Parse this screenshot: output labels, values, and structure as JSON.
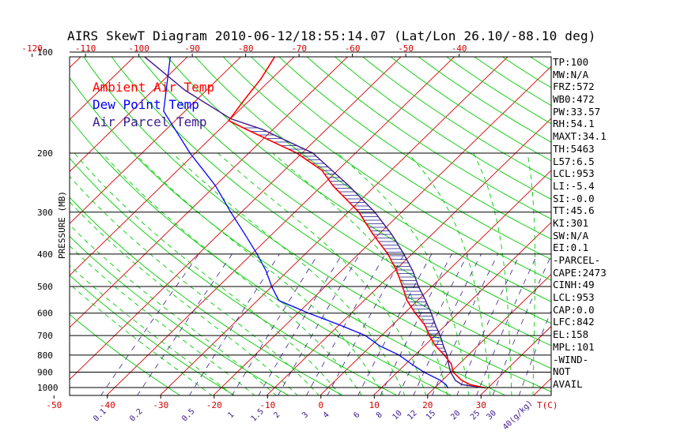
{
  "title": "AIRS SkewT Diagram 2010-06-12/18:55:14.07 (Lat/Lon 26.10/-88.10 deg)",
  "colors": {
    "ambient": "#ff0000",
    "dewpoint": "#0000ff",
    "parcel": "#3c1a8c",
    "isotherm": "#d40000",
    "dry_adiabat": "#00cc00",
    "moist_adiabat": "#00cc00",
    "mixing_ratio": "#3c1a8c",
    "isobar": "#000000",
    "hatch": "#1a1a8c"
  },
  "legend": {
    "ambient": "Ambient Air Temp",
    "dewpoint": "Dew Point Temp",
    "parcel": "Air Parcel Temp"
  },
  "indices": [
    "TP:100",
    "MW:N/A",
    "FRZ:572",
    "WB0:472",
    "PW:33.57",
    "RH:54.1",
    "MAXT:34.1",
    "TH:5463",
    "L57:6.5",
    "LCL:953",
    "LI:-5.4",
    "SI:-0.0",
    "TT:45.6",
    "KI:301",
    "SW:N/A",
    "EI:0.1",
    "-PARCEL-",
    "CAPE:2473",
    "CINH:49",
    "LCL:953",
    "CAP:0.0",
    "LFC:842",
    "EL:158",
    "MPL:101",
    "-WIND-",
    "NOT",
    "AVAIL"
  ],
  "chart_data": {
    "type": "line",
    "title": "AIRS SkewT Diagram 2010-06-12/18:55:14.07 (Lat/Lon 26.10/-88.10 deg)",
    "ylabel": "PRESSURE (MB)",
    "xlabel": "T(C)",
    "y_scale": "log",
    "ylim": [
      1050,
      100
    ],
    "xlim": [
      -52,
      36
    ],
    "y_ticks": [
      100,
      200,
      300,
      400,
      500,
      600,
      700,
      800,
      900,
      1000
    ],
    "x_ticks_bottom": [
      -50,
      -40,
      -30,
      -20,
      -10,
      0,
      10,
      20,
      30
    ],
    "x_ticks_top": [
      -120,
      -110,
      -100,
      -90,
      -80,
      -70,
      -60,
      -50,
      -40
    ],
    "mixing_ratio_labels": [
      "0.1",
      "0.2",
      "0.5",
      "1",
      "1.5",
      "2",
      "3",
      "4",
      "6",
      "8",
      "10",
      "12",
      "15",
      "20",
      "25",
      "30",
      "40(g/kg)"
    ],
    "mixing_ratio_values": [
      0.1,
      0.2,
      0.5,
      1,
      1.5,
      2,
      3,
      4,
      6,
      8,
      10,
      12,
      15,
      20,
      25,
      30,
      40
    ],
    "series": [
      {
        "name": "Ambient Air Temp",
        "points": [
          {
            "p": 1002,
            "t": 29.5
          },
          {
            "p": 980,
            "t": 26.0
          },
          {
            "p": 950,
            "t": 23.5
          },
          {
            "p": 900,
            "t": 20.5
          },
          {
            "p": 850,
            "t": 18.5
          },
          {
            "p": 800,
            "t": 15.5
          },
          {
            "p": 750,
            "t": 12.0
          },
          {
            "p": 700,
            "t": 9.0
          },
          {
            "p": 650,
            "t": 6.0
          },
          {
            "p": 600,
            "t": 2.0
          },
          {
            "p": 550,
            "t": -2.0
          },
          {
            "p": 500,
            "t": -5.5
          },
          {
            "p": 450,
            "t": -9.5
          },
          {
            "p": 400,
            "t": -14.5
          },
          {
            "p": 350,
            "t": -21.0
          },
          {
            "p": 300,
            "t": -28.0
          },
          {
            "p": 250,
            "t": -38.0
          },
          {
            "p": 225,
            "t": -43.0
          },
          {
            "p": 200,
            "t": -51.0
          },
          {
            "p": 170,
            "t": -65.0
          },
          {
            "p": 160,
            "t": -70.0
          },
          {
            "p": 140,
            "t": -71.0
          },
          {
            "p": 120,
            "t": -72.0
          },
          {
            "p": 100,
            "t": -74.0
          }
        ]
      },
      {
        "name": "Dew Point Temp",
        "points": [
          {
            "p": 1002,
            "t": 22.5
          },
          {
            "p": 980,
            "t": 21.5
          },
          {
            "p": 950,
            "t": 19.5
          },
          {
            "p": 900,
            "t": 15.0
          },
          {
            "p": 850,
            "t": 11.0
          },
          {
            "p": 800,
            "t": 7.0
          },
          {
            "p": 750,
            "t": 1.5
          },
          {
            "p": 700,
            "t": -3.0
          },
          {
            "p": 650,
            "t": -10.0
          },
          {
            "p": 600,
            "t": -18.0
          },
          {
            "p": 550,
            "t": -26.0
          },
          {
            "p": 500,
            "t": -30.0
          },
          {
            "p": 450,
            "t": -34.0
          },
          {
            "p": 400,
            "t": -39.0
          },
          {
            "p": 350,
            "t": -45.0
          },
          {
            "p": 300,
            "t": -52.0
          },
          {
            "p": 250,
            "t": -60.0
          },
          {
            "p": 200,
            "t": -71.0
          },
          {
            "p": 150,
            "t": -84.0
          },
          {
            "p": 100,
            "t": -94.0
          }
        ]
      },
      {
        "name": "Air Parcel Temp",
        "points": [
          {
            "p": 1002,
            "t": 29.5
          },
          {
            "p": 980,
            "t": 24.5
          },
          {
            "p": 953,
            "t": 22.5
          },
          {
            "p": 900,
            "t": 20.0
          },
          {
            "p": 850,
            "t": 18.0
          },
          {
            "p": 800,
            "t": 16.0
          },
          {
            "p": 750,
            "t": 13.5
          },
          {
            "p": 700,
            "t": 11.0
          },
          {
            "p": 650,
            "t": 8.0
          },
          {
            "p": 600,
            "t": 5.0
          },
          {
            "p": 550,
            "t": 1.5
          },
          {
            "p": 500,
            "t": -2.5
          },
          {
            "p": 450,
            "t": -6.5
          },
          {
            "p": 400,
            "t": -11.5
          },
          {
            "p": 350,
            "t": -17.5
          },
          {
            "p": 300,
            "t": -25.0
          },
          {
            "p": 250,
            "t": -35.0
          },
          {
            "p": 200,
            "t": -48.0
          },
          {
            "p": 170,
            "t": -62.0
          },
          {
            "p": 158,
            "t": -70.0
          },
          {
            "p": 130,
            "t": -84.0
          },
          {
            "p": 100,
            "t": -100.0
          }
        ]
      }
    ]
  }
}
